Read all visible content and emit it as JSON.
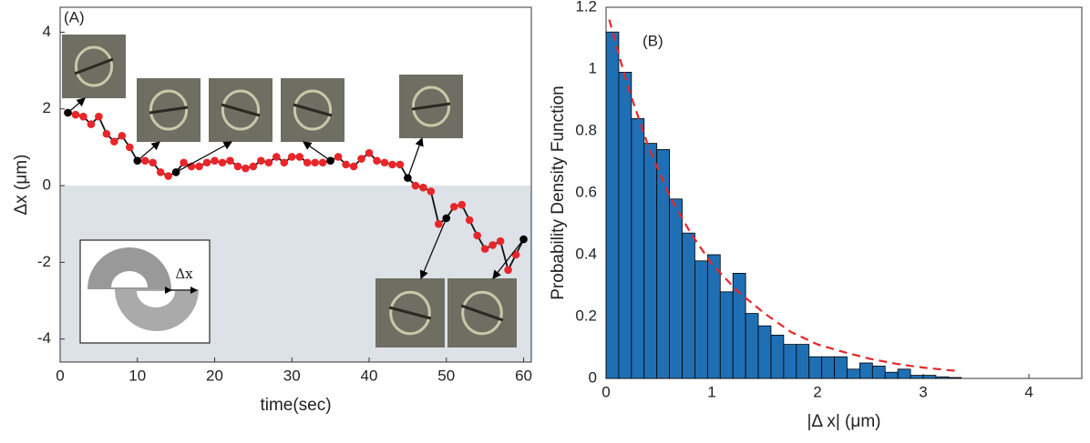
{
  "chart_data": [
    {
      "type": "line",
      "label": "(A)",
      "xlabel": "time(sec)",
      "ylabel": "Δx (μm)",
      "inset_label": "Δx",
      "xlim": [
        0,
        61
      ],
      "ylim": [
        -4.6,
        4.65
      ],
      "xticks": [
        0,
        10,
        20,
        30,
        40,
        50,
        60
      ],
      "yticks": [
        -4,
        -2,
        0,
        2,
        4
      ],
      "shade_below_zero": true,
      "shade_color": "#dde1e8",
      "x": [
        1,
        2,
        3,
        4,
        5,
        6,
        7,
        8,
        9,
        10,
        11,
        12,
        13,
        14,
        15,
        16,
        17,
        18,
        19,
        20,
        21,
        22,
        23,
        24,
        25,
        26,
        27,
        28,
        29,
        30,
        31,
        32,
        33,
        34,
        35,
        36,
        37,
        38,
        39,
        40,
        41,
        42,
        43,
        44,
        45,
        46,
        47,
        48,
        49,
        50,
        51,
        52,
        53,
        54,
        55,
        56,
        57,
        58,
        59,
        60
      ],
      "series": [
        {
          "color": "#e8262a",
          "line_color": "#111",
          "values": [
            1.9,
            1.85,
            1.8,
            1.6,
            1.8,
            1.35,
            1.15,
            1.3,
            1.0,
            0.65,
            0.65,
            0.6,
            0.35,
            0.25,
            0.35,
            0.6,
            0.5,
            0.5,
            0.6,
            0.65,
            0.6,
            0.65,
            0.5,
            0.45,
            0.5,
            0.65,
            0.6,
            0.75,
            0.6,
            0.75,
            0.75,
            0.6,
            0.6,
            0.6,
            0.65,
            0.75,
            0.55,
            0.5,
            0.7,
            0.85,
            0.65,
            0.6,
            0.55,
            0.55,
            0.2,
            0.0,
            -0.05,
            -0.15,
            -1.0,
            -0.85,
            -0.55,
            -0.5,
            -0.9,
            -1.3,
            -1.65,
            -1.55,
            -1.45,
            -2.2,
            -1.8,
            -1.4
          ]
        }
      ],
      "highlight_x": [
        1,
        10,
        15,
        35,
        45,
        50,
        60
      ],
      "highlight_color": "#000"
    },
    {
      "type": "histogram",
      "label": "(B)",
      "xlabel": "|Δ x| (μm)",
      "ylabel": "Probability Density Function",
      "xlim": [
        0,
        4.5
      ],
      "ylim": [
        0,
        1.2
      ],
      "xticks": [
        0,
        1,
        2,
        3,
        4
      ],
      "yticks": [
        0,
        0.2,
        0.4,
        0.6,
        0.8,
        1,
        1.2
      ],
      "color": "#1f6fb5",
      "bins": [
        0,
        0.12,
        0.24,
        0.36,
        0.48,
        0.6,
        0.72,
        0.84,
        0.96,
        1.08,
        1.2,
        1.32,
        1.44,
        1.56,
        1.68,
        1.8,
        1.92,
        2.04,
        2.16,
        2.28,
        2.4,
        2.52,
        2.64,
        2.76,
        2.88,
        3.0,
        3.12,
        3.24,
        3.36
      ],
      "values": [
        1.12,
        0.99,
        0.84,
        0.76,
        0.74,
        0.58,
        0.47,
        0.38,
        0.4,
        0.28,
        0.34,
        0.21,
        0.17,
        0.14,
        0.11,
        0.11,
        0.07,
        0.07,
        0.07,
        0.03,
        0.05,
        0.04,
        0.02,
        0.03,
        0.01,
        0.01,
        0.005,
        0.003
      ],
      "series": [
        {
          "color": "#e8262a",
          "dashed": true,
          "x": [
            0.03,
            0.2,
            0.4,
            0.6,
            0.8,
            1.0,
            1.25,
            1.5,
            1.75,
            2.0,
            2.25,
            2.5,
            2.75,
            3.0,
            3.35
          ],
          "values": [
            1.16,
            0.95,
            0.75,
            0.59,
            0.47,
            0.37,
            0.28,
            0.21,
            0.15,
            0.11,
            0.085,
            0.063,
            0.047,
            0.035,
            0.023
          ]
        }
      ]
    }
  ]
}
